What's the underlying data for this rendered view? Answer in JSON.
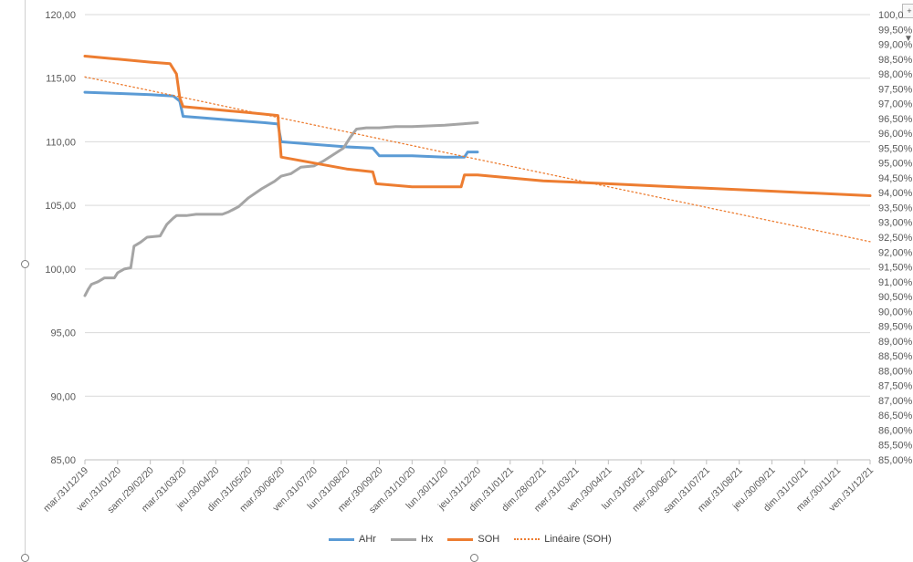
{
  "chart_data": {
    "type": "line",
    "y_left": {
      "ticks": [
        "85,00",
        "90,00",
        "95,00",
        "100,00",
        "105,00",
        "110,00",
        "115,00",
        "120,00"
      ],
      "lim": [
        85,
        120
      ]
    },
    "y_right": {
      "ticks": [
        "85,00%",
        "85,50%",
        "86,00%",
        "86,50%",
        "87,00%",
        "87,50%",
        "88,00%",
        "88,50%",
        "89,00%",
        "89,50%",
        "90,00%",
        "90,50%",
        "91,00%",
        "91,50%",
        "92,00%",
        "92,50%",
        "93,00%",
        "93,50%",
        "94,00%",
        "94,50%",
        "95,00%",
        "95,50%",
        "96,00%",
        "96,50%",
        "97,00%",
        "97,50%",
        "98,00%",
        "98,50%",
        "99,00%",
        "99,50%",
        "100,0"
      ],
      "lim": [
        85,
        100
      ]
    },
    "x_ticks": [
      "mar./31/12/19",
      "ven./31/01/20",
      "sam./29/02/20",
      "mar./31/03/20",
      "jeu./30/04/20",
      "dim./31/05/20",
      "mar./30/06/20",
      "ven./31/07/20",
      "lun./31/08/20",
      "mer./30/09/20",
      "sam./31/10/20",
      "lun./30/11/20",
      "jeu./31/12/20",
      "dim./31/01/21",
      "dim./28/02/21",
      "mer./31/03/21",
      "ven./30/04/21",
      "lun./31/05/21",
      "mer./30/06/21",
      "sam./31/07/21",
      "mar./31/08/21",
      "jeu./30/09/21",
      "dim./31/10/21",
      "mar./30/11/21",
      "ven./31/12/21"
    ],
    "grid": true,
    "legend_position": "bottom",
    "series": [
      {
        "name": "AHr",
        "axis": "left",
        "color": "#5b9bd5",
        "style": "solid",
        "points": [
          [
            0,
            113.9
          ],
          [
            1.0,
            113.8
          ],
          [
            2.0,
            113.7
          ],
          [
            2.7,
            113.6
          ],
          [
            2.9,
            113.2
          ],
          [
            3.0,
            112.0
          ],
          [
            3.5,
            111.9
          ],
          [
            4.5,
            111.7
          ],
          [
            5.5,
            111.5
          ],
          [
            5.9,
            111.4
          ],
          [
            6.0,
            110.0
          ],
          [
            7.0,
            109.8
          ],
          [
            8.0,
            109.6
          ],
          [
            8.8,
            109.5
          ],
          [
            9.0,
            108.9
          ],
          [
            10.0,
            108.9
          ],
          [
            11.0,
            108.8
          ],
          [
            11.6,
            108.8
          ],
          [
            11.7,
            109.2
          ],
          [
            12.0,
            109.2
          ]
        ]
      },
      {
        "name": "Hx",
        "axis": "left",
        "color": "#a5a5a5",
        "style": "solid",
        "points": [
          [
            0,
            97.9
          ],
          [
            0.1,
            98.4
          ],
          [
            0.2,
            98.8
          ],
          [
            0.4,
            99.0
          ],
          [
            0.6,
            99.3
          ],
          [
            0.9,
            99.3
          ],
          [
            1.0,
            99.7
          ],
          [
            1.2,
            100.0
          ],
          [
            1.4,
            100.1
          ],
          [
            1.5,
            101.8
          ],
          [
            1.7,
            102.1
          ],
          [
            1.9,
            102.5
          ],
          [
            2.3,
            102.6
          ],
          [
            2.5,
            103.5
          ],
          [
            2.7,
            104.0
          ],
          [
            2.8,
            104.2
          ],
          [
            3.1,
            104.2
          ],
          [
            3.4,
            104.3
          ],
          [
            4.2,
            104.3
          ],
          [
            4.4,
            104.5
          ],
          [
            4.7,
            104.9
          ],
          [
            5.0,
            105.6
          ],
          [
            5.4,
            106.3
          ],
          [
            5.8,
            106.9
          ],
          [
            6.0,
            107.3
          ],
          [
            6.3,
            107.5
          ],
          [
            6.6,
            108.0
          ],
          [
            7.0,
            108.1
          ],
          [
            7.3,
            108.5
          ],
          [
            7.6,
            109.0
          ],
          [
            7.9,
            109.5
          ],
          [
            8.1,
            110.3
          ],
          [
            8.3,
            111.0
          ],
          [
            8.6,
            111.1
          ],
          [
            9.0,
            111.1
          ],
          [
            9.5,
            111.2
          ],
          [
            10.0,
            111.2
          ],
          [
            11.0,
            111.3
          ],
          [
            11.5,
            111.4
          ],
          [
            12.0,
            111.5
          ]
        ]
      },
      {
        "name": "SOH",
        "axis": "right",
        "color": "#ed7d31",
        "style": "solid",
        "points": [
          [
            0,
            98.6
          ],
          [
            1.0,
            98.5
          ],
          [
            2.0,
            98.4
          ],
          [
            2.6,
            98.35
          ],
          [
            2.8,
            98.0
          ],
          [
            2.9,
            97.2
          ],
          [
            3.0,
            96.9
          ],
          [
            4.0,
            96.8
          ],
          [
            5.0,
            96.7
          ],
          [
            5.9,
            96.6
          ],
          [
            6.0,
            95.2
          ],
          [
            7.0,
            95.0
          ],
          [
            8.0,
            94.8
          ],
          [
            8.8,
            94.7
          ],
          [
            8.9,
            94.3
          ],
          [
            10.0,
            94.2
          ],
          [
            11.5,
            94.2
          ],
          [
            11.6,
            94.6
          ],
          [
            12.0,
            94.6
          ],
          [
            14.0,
            94.4
          ],
          [
            16.0,
            94.3
          ],
          [
            18.0,
            94.2
          ],
          [
            20.0,
            94.1
          ],
          [
            22.0,
            94.0
          ],
          [
            24.0,
            93.9
          ]
        ]
      },
      {
        "name": "Linéaire (SOH)",
        "axis": "right",
        "color": "#ed7d31",
        "style": "dotted",
        "points": [
          [
            0,
            97.9
          ],
          [
            24.0,
            92.35
          ]
        ]
      }
    ]
  }
}
